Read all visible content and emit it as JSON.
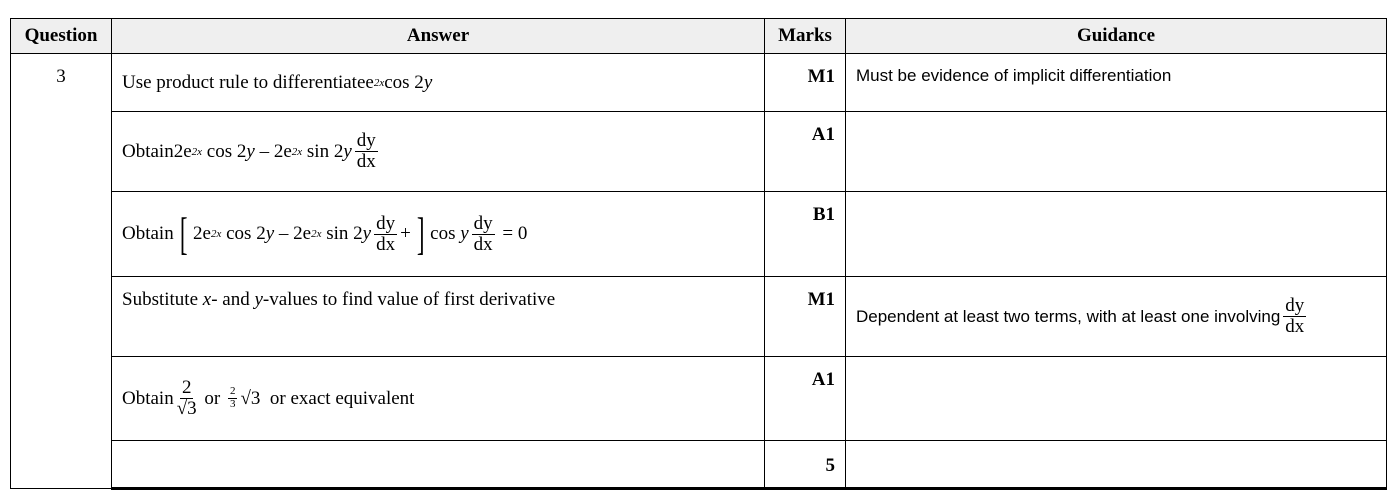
{
  "header": {
    "question": "Question",
    "answer": "Answer",
    "marks": "Marks",
    "guidance": "Guidance"
  },
  "question_number": "3",
  "rows": [
    {
      "text": "Use product rule to differentiate",
      "math": {
        "e": "e",
        "exp": "2x",
        "rest": "cos 2",
        "y": "y"
      },
      "mark": "M1",
      "guidance": "Must be evidence of implicit differentiation"
    },
    {
      "text": "Obtain",
      "math": {
        "t1": "2e",
        "exp1": "2x",
        "t2": " cos 2",
        "y1": "y",
        "minus": " – 2e",
        "exp2": "2x",
        "t3": " sin 2",
        "y2": "y",
        "dnum": "dy",
        "dden": "dx"
      },
      "mark": "A1",
      "guidance": ""
    },
    {
      "text": "Obtain",
      "math": {
        "lb": "[",
        "t1": "2e",
        "exp1": "2x",
        "t2": " cos 2",
        "y1": "y",
        "minus": " – 2e",
        "exp2": "2x",
        "t3": " sin 2",
        "y2": "y",
        "dnum": "dy",
        "dden": "dx",
        "plus": "+",
        "rb": "]",
        "cos": "cos ",
        "y3": "y",
        "dnum2": "dy",
        "dden2": "dx",
        "eq": " = 0"
      },
      "mark": "B1",
      "guidance": ""
    },
    {
      "parts": [
        "Substitute ",
        "x",
        "- and ",
        "y",
        "-values to find value of first derivative"
      ],
      "mark": "M1",
      "guidance": "Dependent at least two terms, with at least one involving",
      "guidance_frac": {
        "num": "dy",
        "den": "dx"
      }
    },
    {
      "text": "Obtain",
      "frac_num": "2",
      "frac_den": "√3",
      "or1": " or ",
      "small_num": "2",
      "small_den": "3",
      "sqrt": "√3",
      "tail": "  or exact equivalent",
      "mark": "A1",
      "guidance": ""
    },
    {
      "mark": "5"
    }
  ]
}
